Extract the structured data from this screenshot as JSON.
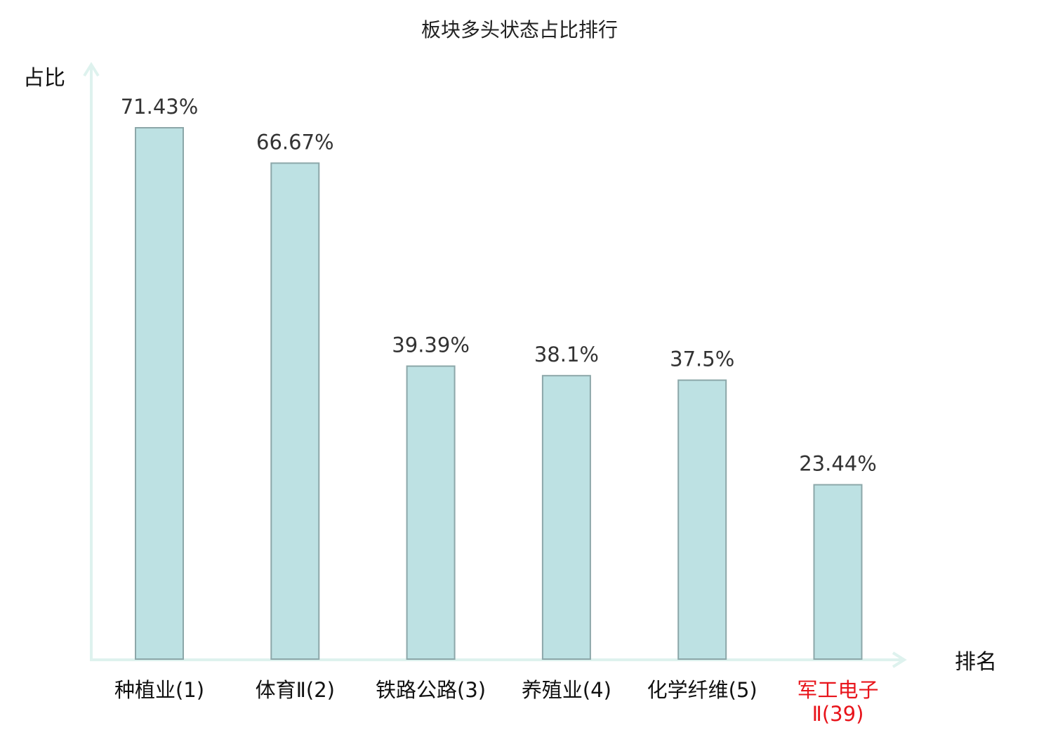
{
  "chart_data": {
    "type": "bar",
    "title": "板块多头状态占比排行",
    "ylabel": "占比",
    "xlabel": "排名",
    "ylim": [
      0,
      75
    ],
    "grid": false,
    "legend": "none",
    "categories": [
      {
        "lines": [
          "种植业(1)"
        ],
        "highlight": false
      },
      {
        "lines": [
          "体育Ⅱ(2)"
        ],
        "highlight": false
      },
      {
        "lines": [
          "铁路公路(3)"
        ],
        "highlight": false
      },
      {
        "lines": [
          "养殖业(4)"
        ],
        "highlight": false
      },
      {
        "lines": [
          "化学纤维(5)"
        ],
        "highlight": false
      },
      {
        "lines": [
          "军工电子",
          "Ⅱ(39)"
        ],
        "highlight": true
      }
    ],
    "values": [
      71.43,
      66.67,
      39.39,
      38.1,
      37.5,
      23.44
    ],
    "value_labels": [
      "71.43%",
      "66.67%",
      "39.39%",
      "38.1%",
      "37.5%",
      "23.44%"
    ],
    "colors": {
      "bar_fill": "#bde1e3",
      "bar_stroke": "#8ca7a9",
      "axis": "#def2ee",
      "highlight": "#e8141b"
    }
  }
}
